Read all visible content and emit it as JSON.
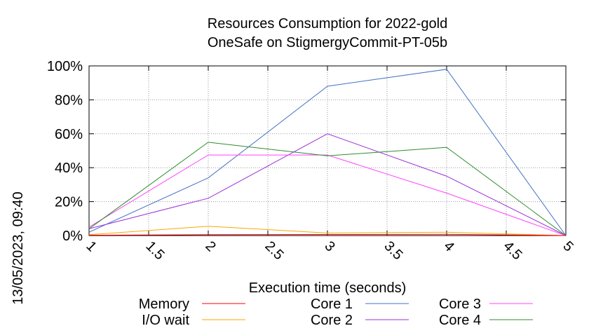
{
  "chart_data": {
    "type": "line",
    "title": "Resources Consumption for 2022-gold",
    "subtitle": "OneSafe on StigmergyCommit-PT-05b",
    "xlabel": "Execution time (seconds)",
    "ylabel": "",
    "side_label": "13/05/2023, 09:40",
    "xlim": [
      1,
      5
    ],
    "ylim": [
      0,
      100
    ],
    "x_ticks": [
      "1",
      "1.5",
      "2",
      "2.5",
      "3",
      "3.5",
      "4",
      "4.5",
      "5"
    ],
    "y_ticks": [
      "0%",
      "20%",
      "40%",
      "60%",
      "80%",
      "100%"
    ],
    "grid": true,
    "legend_position": "bottom",
    "x": [
      1,
      2,
      3,
      4,
      5
    ],
    "series": [
      {
        "name": "Memory",
        "color": "#ff0000",
        "values": [
          0.2,
          0.5,
          0.6,
          0.7,
          0
        ]
      },
      {
        "name": "I/O wait",
        "color": "#ffa500",
        "values": [
          0.5,
          5.5,
          1.5,
          2,
          0
        ]
      },
      {
        "name": "Core 1",
        "color": "#4472c4",
        "values": [
          2,
          34,
          88,
          98,
          0
        ]
      },
      {
        "name": "Core 2",
        "color": "#9b30d9",
        "values": [
          4,
          22,
          60,
          35,
          0
        ]
      },
      {
        "name": "Core 3",
        "color": "#ff44ff",
        "values": [
          5,
          47.5,
          47.5,
          25,
          0
        ]
      },
      {
        "name": "Core 4",
        "color": "#2e8b2e",
        "values": [
          4,
          55,
          47,
          52,
          0
        ]
      }
    ]
  }
}
